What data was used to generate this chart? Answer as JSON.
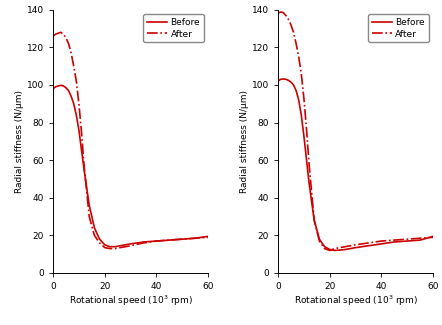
{
  "color": "#cc0000",
  "xlim": [
    0,
    60
  ],
  "ylim": [
    0,
    140
  ],
  "xticks": [
    0,
    20,
    40,
    60
  ],
  "yticks": [
    0,
    20,
    40,
    60,
    80,
    100,
    120,
    140
  ],
  "ylabel": "Radial stiffness (N/μm)",
  "legend_before": "Before",
  "legend_after": "After",
  "left_before_x": [
    0,
    0.5,
    1,
    2,
    3,
    4,
    5,
    6,
    7,
    8,
    9,
    10,
    12,
    14,
    16,
    18,
    20,
    22,
    24,
    26,
    28,
    30,
    35,
    40,
    45,
    50,
    55,
    60
  ],
  "left_before_y": [
    98,
    98.5,
    99,
    99.5,
    99.8,
    99.5,
    98.5,
    97,
    94,
    90,
    84,
    76,
    55,
    36,
    24,
    18,
    15,
    14,
    14,
    14.5,
    15,
    15.5,
    16.5,
    17,
    17.5,
    18,
    18.5,
    19.5
  ],
  "left_after_x": [
    0,
    0.5,
    1,
    2,
    3,
    4,
    5,
    6,
    7,
    8,
    9,
    10,
    11,
    12,
    14,
    16,
    18,
    20,
    22,
    24,
    26,
    28,
    30,
    35,
    40,
    45,
    50,
    55,
    60
  ],
  "left_after_y": [
    126,
    126.5,
    127,
    127.5,
    128,
    127,
    125,
    122,
    117,
    110,
    102,
    90,
    75,
    57,
    30,
    20,
    16,
    13.5,
    13,
    13,
    13.5,
    14,
    14.5,
    16,
    17,
    17.5,
    18,
    18.5,
    19
  ],
  "right_before_x": [
    0,
    0.5,
    1,
    2,
    3,
    4,
    5,
    6,
    7,
    8,
    9,
    10,
    12,
    14,
    16,
    18,
    20,
    22,
    24,
    26,
    28,
    30,
    35,
    40,
    45,
    50,
    55,
    60
  ],
  "right_before_y": [
    102,
    102.5,
    103,
    103.2,
    103,
    102.5,
    101.5,
    100,
    97,
    92,
    84,
    73,
    48,
    28,
    18,
    14,
    12.5,
    12,
    12.2,
    12.5,
    13,
    13.5,
    14.5,
    15.5,
    16.5,
    17,
    17.5,
    19.5
  ],
  "right_after_x": [
    0,
    0.5,
    1,
    2,
    3,
    4,
    5,
    6,
    7,
    8,
    9,
    10,
    11,
    12,
    14,
    16,
    18,
    20,
    22,
    24,
    26,
    28,
    30,
    35,
    40,
    45,
    50,
    55,
    60
  ],
  "right_after_y": [
    138,
    138.5,
    138.8,
    138.5,
    137,
    135,
    132,
    128,
    122,
    115,
    106,
    93,
    77,
    58,
    28,
    17,
    13,
    12,
    13,
    13.5,
    14,
    14.5,
    15,
    16,
    17,
    17.5,
    18,
    18.5,
    19
  ],
  "figsize": [
    4.42,
    3.25
  ],
  "dpi": 100,
  "label_fontsize": 6.5,
  "tick_fontsize": 6.5,
  "legend_fontsize": 6.5,
  "linewidth": 1.2
}
